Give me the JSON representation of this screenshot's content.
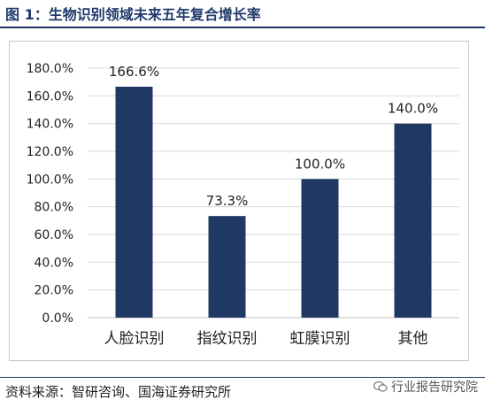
{
  "figure": {
    "title": "图 1：生物识别领域未来五年复合增长率"
  },
  "source": "资料来源：智研咨询、国海证券研究所",
  "watermark": "行业报告研究院",
  "colors": {
    "bar": "#203864",
    "grid": "#d9d9d9",
    "accent": "#1f3a6b"
  },
  "icons": {
    "watermark": "wechat-icon"
  },
  "chart_data": {
    "type": "bar",
    "title": "",
    "xlabel": "",
    "ylabel": "",
    "categories": [
      "人脸识别",
      "指纹识别",
      "虹膜识别",
      "其他"
    ],
    "values": [
      166.6,
      73.3,
      100.0,
      140.0
    ],
    "value_labels": [
      "166.6%",
      "73.3%",
      "100.0%",
      "140.0%"
    ],
    "ylim": [
      0,
      180
    ],
    "yticks": [
      0,
      20,
      40,
      60,
      80,
      100,
      120,
      140,
      160,
      180
    ],
    "ytick_labels": [
      "0.0%",
      "20.0%",
      "40.0%",
      "60.0%",
      "80.0%",
      "100.0%",
      "120.0%",
      "140.0%",
      "160.0%",
      "180.0%"
    ],
    "grid": true,
    "legend": "none"
  }
}
